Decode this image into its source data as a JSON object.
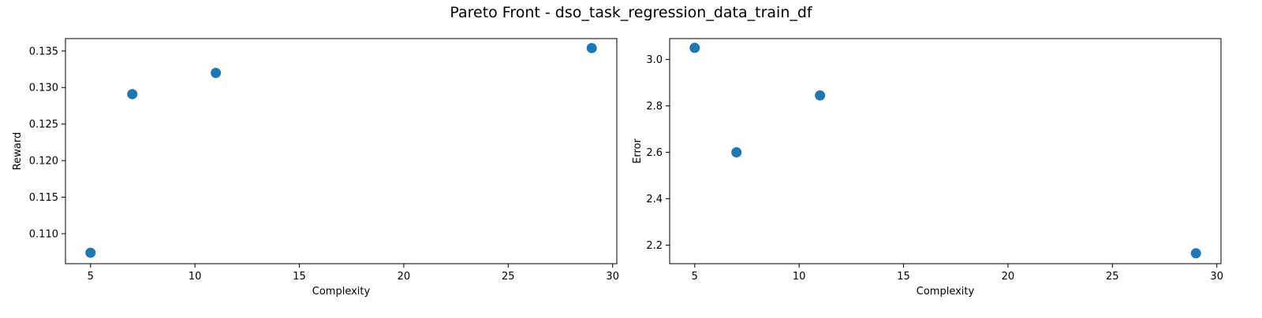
{
  "figure_title": "Pareto Front - dso_task_regression_data_train_df",
  "colors": {
    "marker": "#1f77b4",
    "axes": "#000000",
    "background": "#ffffff"
  },
  "chart_data": [
    {
      "type": "scatter",
      "title": "",
      "xlabel": "Complexity",
      "ylabel": "Reward",
      "xlim": [
        3.8,
        30.2
      ],
      "ylim": [
        0.1059,
        0.1367
      ],
      "xticks": [
        5,
        10,
        15,
        20,
        25,
        30
      ],
      "yticks": [
        0.11,
        0.115,
        0.12,
        0.125,
        0.13,
        0.135
      ],
      "ytick_labels": [
        "0.110",
        "0.115",
        "0.120",
        "0.125",
        "0.130",
        "0.135"
      ],
      "grid": false,
      "series": [
        {
          "x": [
            5,
            7,
            11,
            29
          ],
          "y": [
            0.1074,
            0.1291,
            0.132,
            0.1354
          ]
        }
      ]
    },
    {
      "type": "scatter",
      "title": "",
      "xlabel": "Complexity",
      "ylabel": "Error",
      "xlim": [
        3.8,
        30.2
      ],
      "ylim": [
        2.12,
        3.09
      ],
      "xticks": [
        5,
        10,
        15,
        20,
        25,
        30
      ],
      "yticks": [
        2.2,
        2.4,
        2.6,
        2.8,
        3.0
      ],
      "ytick_labels": [
        "2.2",
        "2.4",
        "2.6",
        "2.8",
        "3.0"
      ],
      "grid": false,
      "series": [
        {
          "x": [
            5,
            7,
            11,
            29
          ],
          "y": [
            3.05,
            2.6,
            2.845,
            2.165
          ]
        }
      ]
    }
  ]
}
